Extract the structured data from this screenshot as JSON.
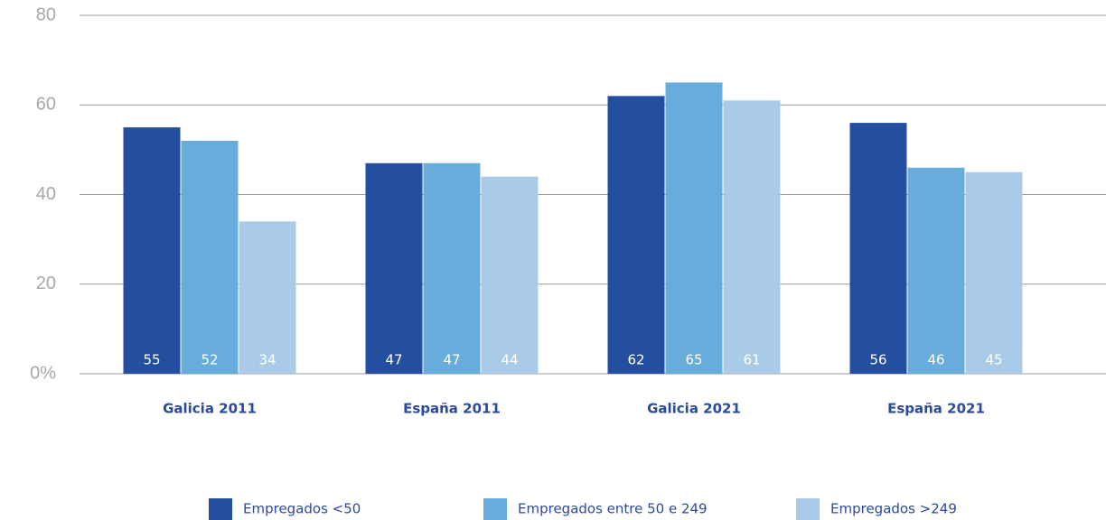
{
  "chart_data": {
    "type": "bar",
    "categories": [
      "Galicia 2011",
      "España 2011",
      "Galicia 2021",
      "España 2021"
    ],
    "series": [
      {
        "name": "Empregados <50",
        "color": "#244ea0",
        "values": [
          55,
          47,
          62,
          56
        ]
      },
      {
        "name": "Empregados entre 50 e 249",
        "color": "#67acdb",
        "values": [
          52,
          47,
          65,
          46
        ]
      },
      {
        "name": "Empregados >249",
        "color": "#a9cbe8",
        "values": [
          34,
          44,
          61,
          45
        ]
      }
    ],
    "ylim": [
      0,
      80
    ],
    "yticks": [
      {
        "value": 0,
        "label": "0%"
      },
      20,
      40,
      60,
      80
    ],
    "grid": true,
    "legend": "bottom"
  }
}
